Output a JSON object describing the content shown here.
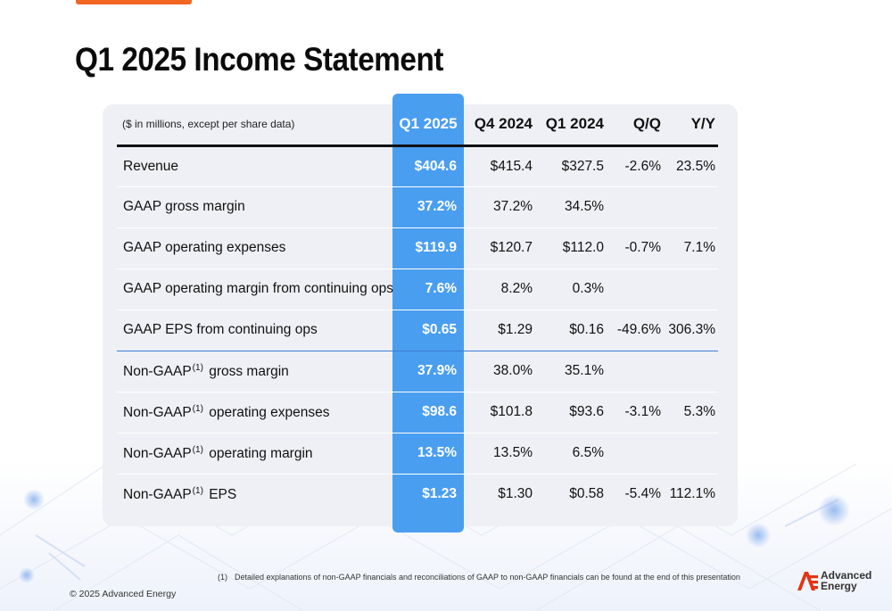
{
  "title": "Q1 2025 Income Statement",
  "colors": {
    "accent": "#f26522",
    "highlight": "#4a9ef0",
    "card": "#eef0f5"
  },
  "table": {
    "unit_note": "($ in millions, except per share data)",
    "columns": [
      "Q1 2025",
      "Q4 2024",
      "Q1 2024",
      "Q/Q",
      "Y/Y"
    ],
    "rows": [
      {
        "label": "Revenue",
        "values": [
          "$404.6",
          "$415.4",
          "$327.5",
          "-2.6%",
          "23.5%"
        ]
      },
      {
        "label": "GAAP gross margin",
        "values": [
          "37.2%",
          "37.2%",
          "34.5%",
          "",
          ""
        ]
      },
      {
        "label": "GAAP operating expenses",
        "values": [
          "$119.9",
          "$120.7",
          "$112.0",
          "-0.7%",
          "7.1%"
        ]
      },
      {
        "label": "GAAP operating margin from continuing ops",
        "values": [
          "7.6%",
          "8.2%",
          "0.3%",
          "",
          ""
        ]
      },
      {
        "label": "GAAP EPS from continuing ops",
        "values": [
          "$0.65",
          "$1.29",
          "$0.16",
          "-49.6%",
          "306.3%"
        ]
      },
      {
        "label": "Non-GAAP",
        "footnote": "(1)",
        "label_suffix": "gross margin",
        "values": [
          "37.9%",
          "38.0%",
          "35.1%",
          "",
          ""
        ]
      },
      {
        "label": "Non-GAAP",
        "footnote": "(1)",
        "label_suffix": "operating expenses",
        "values": [
          "$98.6",
          "$101.8",
          "$93.6",
          "-3.1%",
          "5.3%"
        ]
      },
      {
        "label": "Non-GAAP",
        "footnote": "(1)",
        "label_suffix": "operating margin",
        "values": [
          "13.5%",
          "13.5%",
          "6.5%",
          "",
          ""
        ]
      },
      {
        "label": "Non-GAAP",
        "footnote": "(1)",
        "label_suffix": "EPS",
        "values": [
          "$1.23",
          "$1.30",
          "$0.58",
          "-5.4%",
          "112.1%"
        ]
      }
    ]
  },
  "footnote": {
    "number": "(1)",
    "text": "Detailed explanations of non-GAAP financials and reconciliations of GAAP to non-GAAP financials can be found at the end of this presentation"
  },
  "copyright": "© 2025 Advanced Energy",
  "logo": {
    "line1": "Advanced",
    "line2": "Energy",
    "icon": "advanced-energy-logo-icon"
  }
}
